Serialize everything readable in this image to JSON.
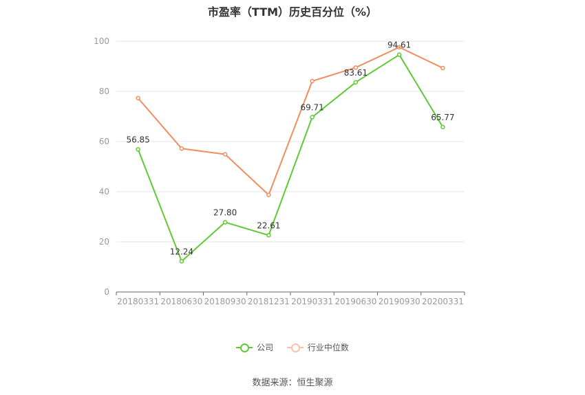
{
  "chart_data": {
    "type": "line",
    "title": "市盈率（TTM）历史百分位（%）",
    "categories": [
      "20180331",
      "20180630",
      "20180930",
      "20181231",
      "20190331",
      "20190630",
      "20190930",
      "20200331"
    ],
    "ylim": [
      0,
      100
    ],
    "yticks": [
      "0",
      "20",
      "40",
      "60",
      "80",
      "100"
    ],
    "grid": true,
    "legend_position": "bottom",
    "series": [
      {
        "name": "公司",
        "color": "#5ec934",
        "values": [
          56.85,
          12.24,
          27.8,
          22.61,
          69.71,
          83.61,
          94.61,
          65.77
        ],
        "labels": [
          "56.85",
          "12.24",
          "27.80",
          "22.61",
          "69.71",
          "83.61",
          "94.61",
          "65.77"
        ]
      },
      {
        "name": "行业中位数",
        "color": "#f08c5e",
        "values": [
          77.3,
          57.2,
          54.9,
          38.7,
          84.1,
          89.5,
          97.6,
          89.3
        ]
      }
    ]
  },
  "source": "数据来源：恒生聚源"
}
